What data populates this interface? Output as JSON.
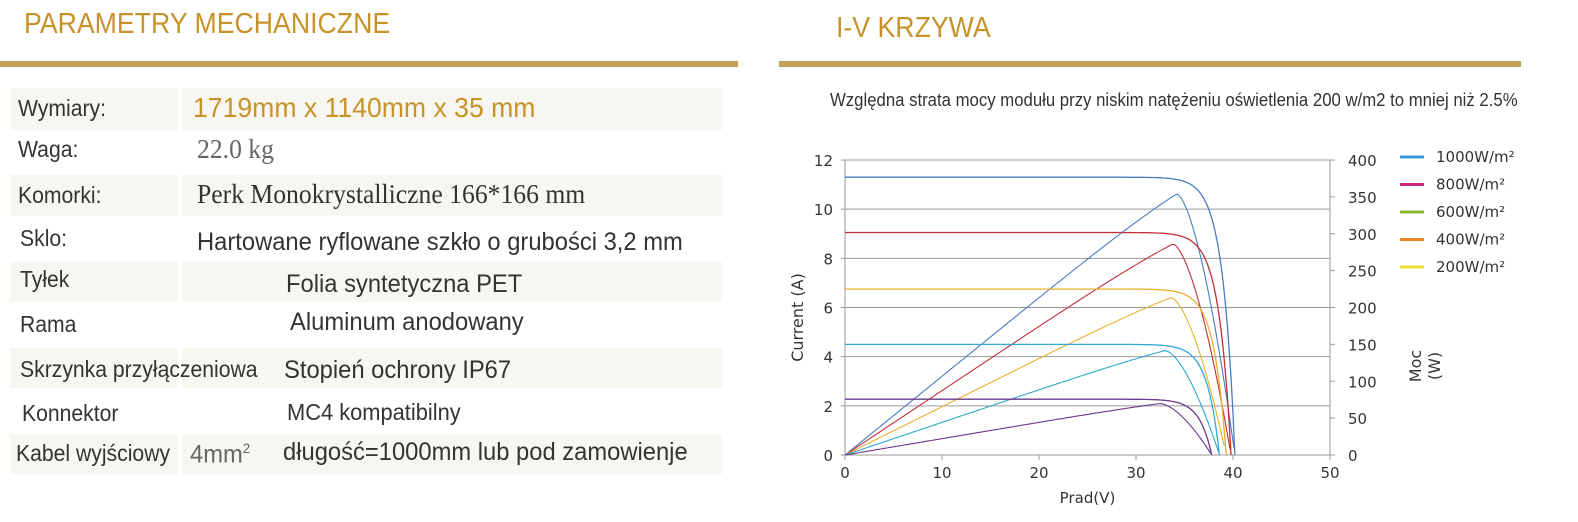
{
  "left": {
    "title": "PARAMETRY MECHANICZNE",
    "rows": [
      {
        "label": "Wymiary:",
        "value": "1719mm x 1140mm x 35 mm"
      },
      {
        "label": "Waga:",
        "value": "22.0 kg"
      },
      {
        "label": "Komorki:",
        "value": "Perk Monokrystalliczne 166*166 mm"
      },
      {
        "label": "Sklo:",
        "value": "Hartowane ryflowane szkło o grubości 3,2 mm"
      },
      {
        "label": "Tyłek",
        "value": "Folia syntetyczna PET"
      },
      {
        "label": "Rama",
        "value": "Aluminum anodowany"
      },
      {
        "label": "Skrzynka przyłączeniowa",
        "value": "Stopień ochrony IP67"
      },
      {
        "label": "Konnektor",
        "value": "MC4 kompatibilny"
      },
      {
        "label": "Kabel wyjściowy",
        "value_prefix": "4mm",
        "value_prefix_sup": "2",
        "value": "długość=1000mm lub pod zamowienje"
      }
    ]
  },
  "right": {
    "title": "I-V KRZYWA",
    "note": "Względna strata mocy modułu przy niskim natężeniu oświetlenia 200 w/m2 to mniej niż 2.5%"
  },
  "chart_data": {
    "type": "line",
    "xlabel": "Prad(V)",
    "ylabel": "Current (A)",
    "y2label": "Moc (W)",
    "xlim": [
      0,
      50
    ],
    "ylim": [
      0,
      12
    ],
    "y2lim": [
      0,
      400
    ],
    "xticks": [
      "0",
      "10",
      "20",
      "30",
      "40",
      "50"
    ],
    "yticks": [
      "0",
      "2",
      "4",
      "6",
      "8",
      "10",
      "12"
    ],
    "y2ticks": [
      "0",
      "50",
      "100",
      "150",
      "200",
      "250",
      "300",
      "350",
      "400"
    ],
    "grid": "horizontal",
    "legend_position": "right",
    "legend_unit": "W/m²",
    "series": [
      {
        "name": "1000W/m²",
        "color": "#4a7cc0",
        "legend_color": "#3a9ad9",
        "isc": 11.3,
        "voc": 40.2,
        "pmax": 365,
        "vmp": 34.2
      },
      {
        "name": "800W/m²",
        "color": "#c0303a",
        "legend_color": "#c8267a",
        "isc": 9.05,
        "voc": 39.8,
        "pmax": 295,
        "vmp": 33.8
      },
      {
        "name": "600W/m²",
        "color": "#e8b030",
        "legend_color": "#8bb830",
        "isc": 6.75,
        "voc": 39.3,
        "pmax": 220,
        "vmp": 33.6
      },
      {
        "name": "400W/m²",
        "color": "#30a8d0",
        "legend_color": "#e88a20",
        "isc": 4.5,
        "voc": 38.6,
        "pmax": 146,
        "vmp": 33.0
      },
      {
        "name": "200W/m²",
        "color": "#6a3a8a",
        "legend_color": "#e8e030",
        "isc": 2.27,
        "voc": 37.8,
        "pmax": 72,
        "vmp": 32.5
      }
    ]
  }
}
